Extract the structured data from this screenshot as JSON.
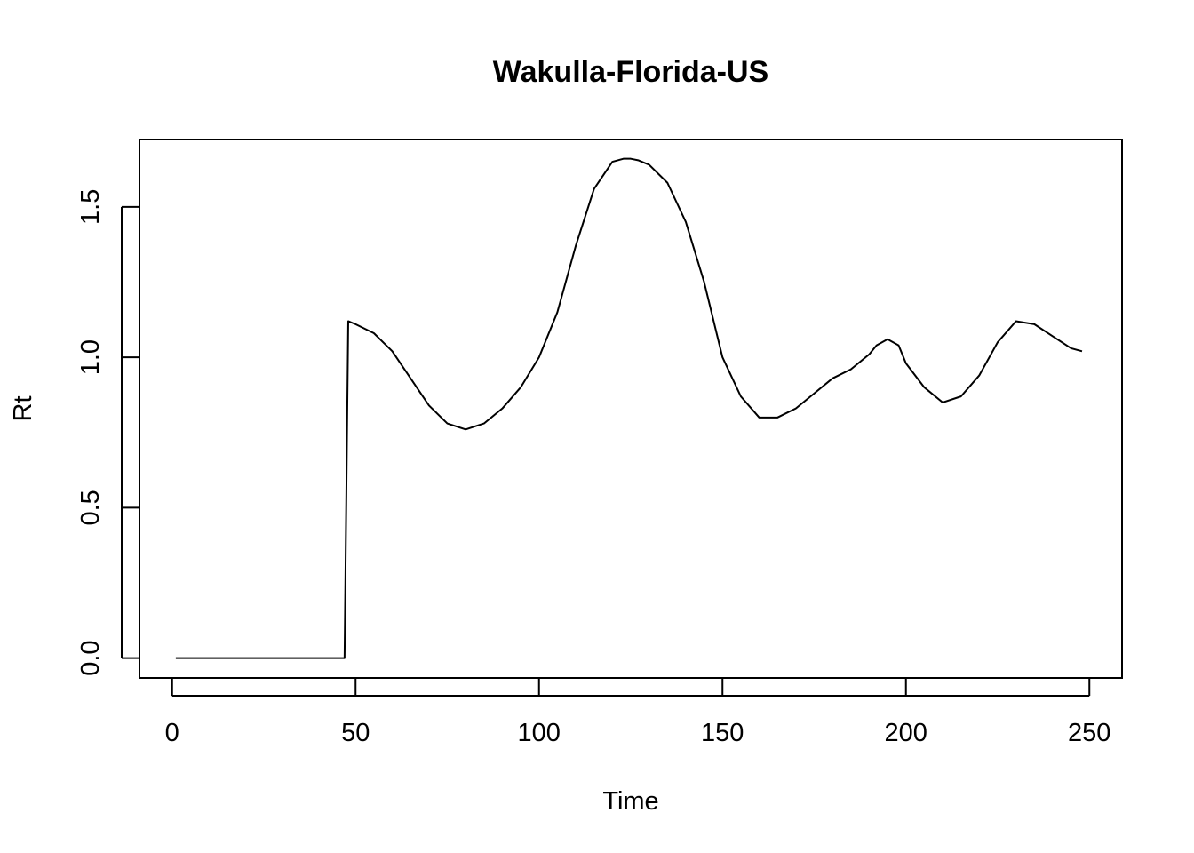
{
  "chart_data": {
    "type": "line",
    "title": "Wakulla-Florida-US",
    "xlabel": "Time",
    "ylabel": "Rt",
    "xlim": [
      -8.9,
      258.9
    ],
    "ylim": [
      -0.066,
      1.724
    ],
    "xticks": [
      0,
      50,
      100,
      150,
      200,
      250
    ],
    "xtick_labels": [
      "0",
      "50",
      "100",
      "150",
      "200",
      "250"
    ],
    "yticks": [
      0.0,
      0.5,
      1.0,
      1.5
    ],
    "ytick_labels": [
      "0.0",
      "0.5",
      "1.0",
      "1.5"
    ],
    "grid": false,
    "legend": "none",
    "line_color": "#000000",
    "series": [
      {
        "x": [
          1,
          10,
          20,
          30,
          40,
          47,
          48,
          50,
          55,
          60,
          65,
          70,
          75,
          80,
          85,
          90,
          95,
          100,
          105,
          110,
          115,
          120,
          123,
          125,
          127,
          130,
          135,
          140,
          145,
          150,
          155,
          160,
          165,
          170,
          175,
          180,
          185,
          190,
          192,
          195,
          198,
          200,
          205,
          210,
          215,
          220,
          225,
          230,
          235,
          240,
          245,
          248
        ],
        "y": [
          0.0,
          0.0,
          0.0,
          0.0,
          0.0,
          0.0,
          1.12,
          1.11,
          1.08,
          1.02,
          0.93,
          0.84,
          0.78,
          0.76,
          0.78,
          0.83,
          0.9,
          1.0,
          1.15,
          1.37,
          1.56,
          1.65,
          1.66,
          1.66,
          1.655,
          1.64,
          1.58,
          1.45,
          1.25,
          1.0,
          0.87,
          0.8,
          0.8,
          0.83,
          0.88,
          0.93,
          0.96,
          1.01,
          1.04,
          1.06,
          1.04,
          0.98,
          0.9,
          0.85,
          0.87,
          0.94,
          1.05,
          1.12,
          1.11,
          1.07,
          1.03,
          1.02
        ]
      }
    ]
  }
}
